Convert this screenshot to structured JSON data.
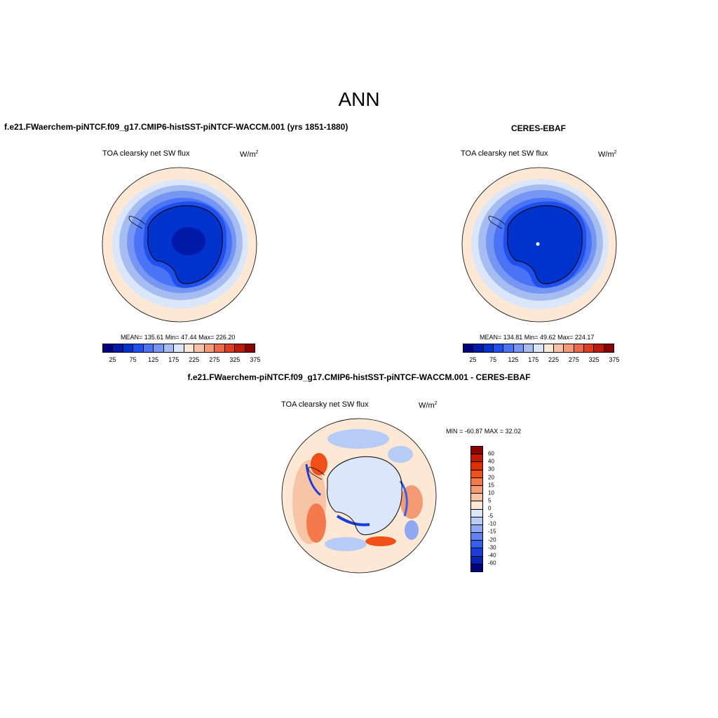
{
  "title": "ANN",
  "panels": {
    "model": {
      "title": "f.e21.FWaerchem-piNTCF.f09_g17.CMIP6-histSST-piNTCF-WACCM.001 (yrs 1851-1880)",
      "var_label": "TOA clearsky net SW flux",
      "units_base": "W/m",
      "units_exp": "2",
      "stats": "MEAN= 135.61  Min=  47.44  Max= 226.20"
    },
    "obs": {
      "title": "CERES-EBAF",
      "var_label": "TOA clearsky net SW flux",
      "units_base": "W/m",
      "units_exp": "2",
      "stats": "MEAN= 134.81  Min=  49.62  Max= 224.17"
    },
    "diff": {
      "title": "f.e21.FWaerchem-piNTCF.f09_g17.CMIP6-histSST-piNTCF-WACCM.001 - CERES-EBAF",
      "var_label": "TOA clearsky net SW flux",
      "units_base": "W/m",
      "units_exp": "2",
      "stats": "MIN = -60.87 MAX =  32.02"
    }
  },
  "colorbar_main": {
    "colors": [
      "#00007f",
      "#0019a8",
      "#0032cc",
      "#1f50ee",
      "#4a73f5",
      "#7596f2",
      "#a6bdf2",
      "#dce6fb",
      "#fde8d6",
      "#f9c2a4",
      "#f49a76",
      "#ec6a47",
      "#e03c21",
      "#bd1a0e",
      "#8b0000"
    ],
    "ticks": [
      "25",
      "75",
      "125",
      "175",
      "225",
      "275",
      "325",
      "375"
    ]
  },
  "colorbar_diff": {
    "colors": [
      "#8b0000",
      "#c01805",
      "#dd3000",
      "#f05018",
      "#f47a4e",
      "#f59b74",
      "#f7c4a6",
      "#fde8d6",
      "#dce6fb",
      "#b6cbf6",
      "#8ea9f2",
      "#5f84f0",
      "#3560ee",
      "#1a3dd8",
      "#0a22b0",
      "#00007f"
    ],
    "ticks": [
      "60",
      "40",
      "30",
      "20",
      "15",
      "10",
      "5",
      "0",
      "-5",
      "-10",
      "-15",
      "-20",
      "-30",
      "-40",
      "-60"
    ]
  }
}
